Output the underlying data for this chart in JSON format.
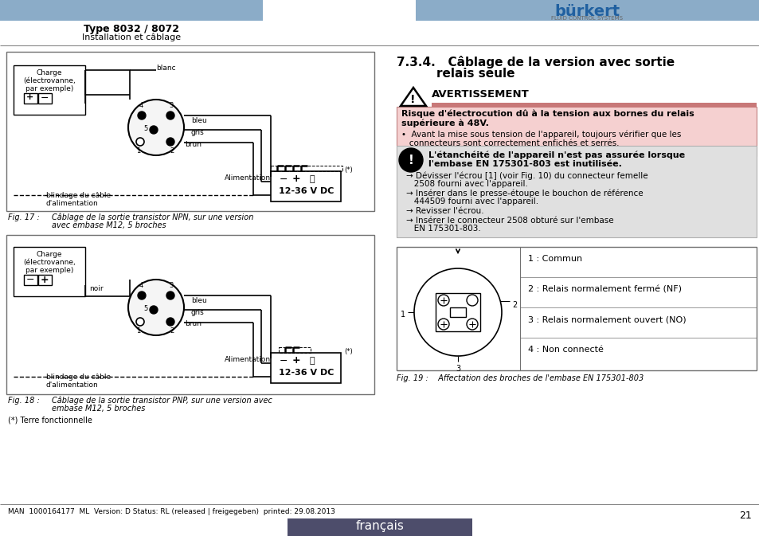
{
  "page_bg": "#ffffff",
  "header_bar_color": "#8bacc8",
  "title_bold": "Type 8032 / 8072",
  "title_sub": "Installation et câblage",
  "burkert_color": "#2060a0",
  "section_num": "7.3.4.",
  "section_title1": "Câblage de la version avec sortie",
  "section_title2": "relais seule",
  "warn_title": "AVERTISSEMENT",
  "warn_bar_color": "#c87878",
  "warn_box_color": "#f5d0d0",
  "warn_border_color": "#c08080",
  "warn_text1": "Risque d'électrocution dû à la tension aux bornes du relais",
  "warn_text2": "supérieure à 48V.",
  "warn_bullet": "Avant la mise sous tension de l'appareil, toujours vérifier que les",
  "warn_bullet2": "connecteurs sont correctement enfichés et serrés.",
  "note_bg": "#e0e0e0",
  "note_border": "#b0b0b0",
  "note_title1": "L'étanchéité de l'appareil n'est pas assurée lorsque",
  "note_title2": "l'embase EN 175301-803 est inutilisée.",
  "note_a1a": "→ Dévisser l'écrou [1] (voir Fig. 10) du connecteur femelle",
  "note_a1b": "   2508 fourni avec l'appareil.",
  "note_a2a": "→ Insérer dans le presse-étoupe le bouchon de référence",
  "note_a2b": "   444509 fourni avec l'appareil.",
  "note_a3": "→ Revisser l'écrou.",
  "note_a4a": "→ Insérer le connecteur 2508 obturé sur l'embase",
  "note_a4b": "   EN 175301-803.",
  "pin1": "1 : Commun",
  "pin2": "2 : Relais normalement fermé (NF)",
  "pin3": "3 : Relais normalement ouvert (NO)",
  "pin4": "4 : Non connecté",
  "fig17_cap1": "Fig. 17 :",
  "fig17_cap2": "Câblage de la sortie transistor NPN, sur une version",
  "fig17_cap3": "avec embase M12, 5 broches",
  "fig18_cap1": "Fig. 18 :",
  "fig18_cap2": "Câblage de la sortie transistor PNP, sur une version avec",
  "fig18_cap3": "embase M12, 5 broches",
  "fig19_cap": "Fig. 19 :    Affectation des broches de l'embase EN 175301-803",
  "terre": "(*) Terre fonctionnelle",
  "footer": "MAN  1000164177  ML  Version: D Status: RL (released | freigegeben)  printed: 29.08.2013",
  "page_num": "21",
  "langue_bg": "#4d4d6b",
  "langue": "français"
}
